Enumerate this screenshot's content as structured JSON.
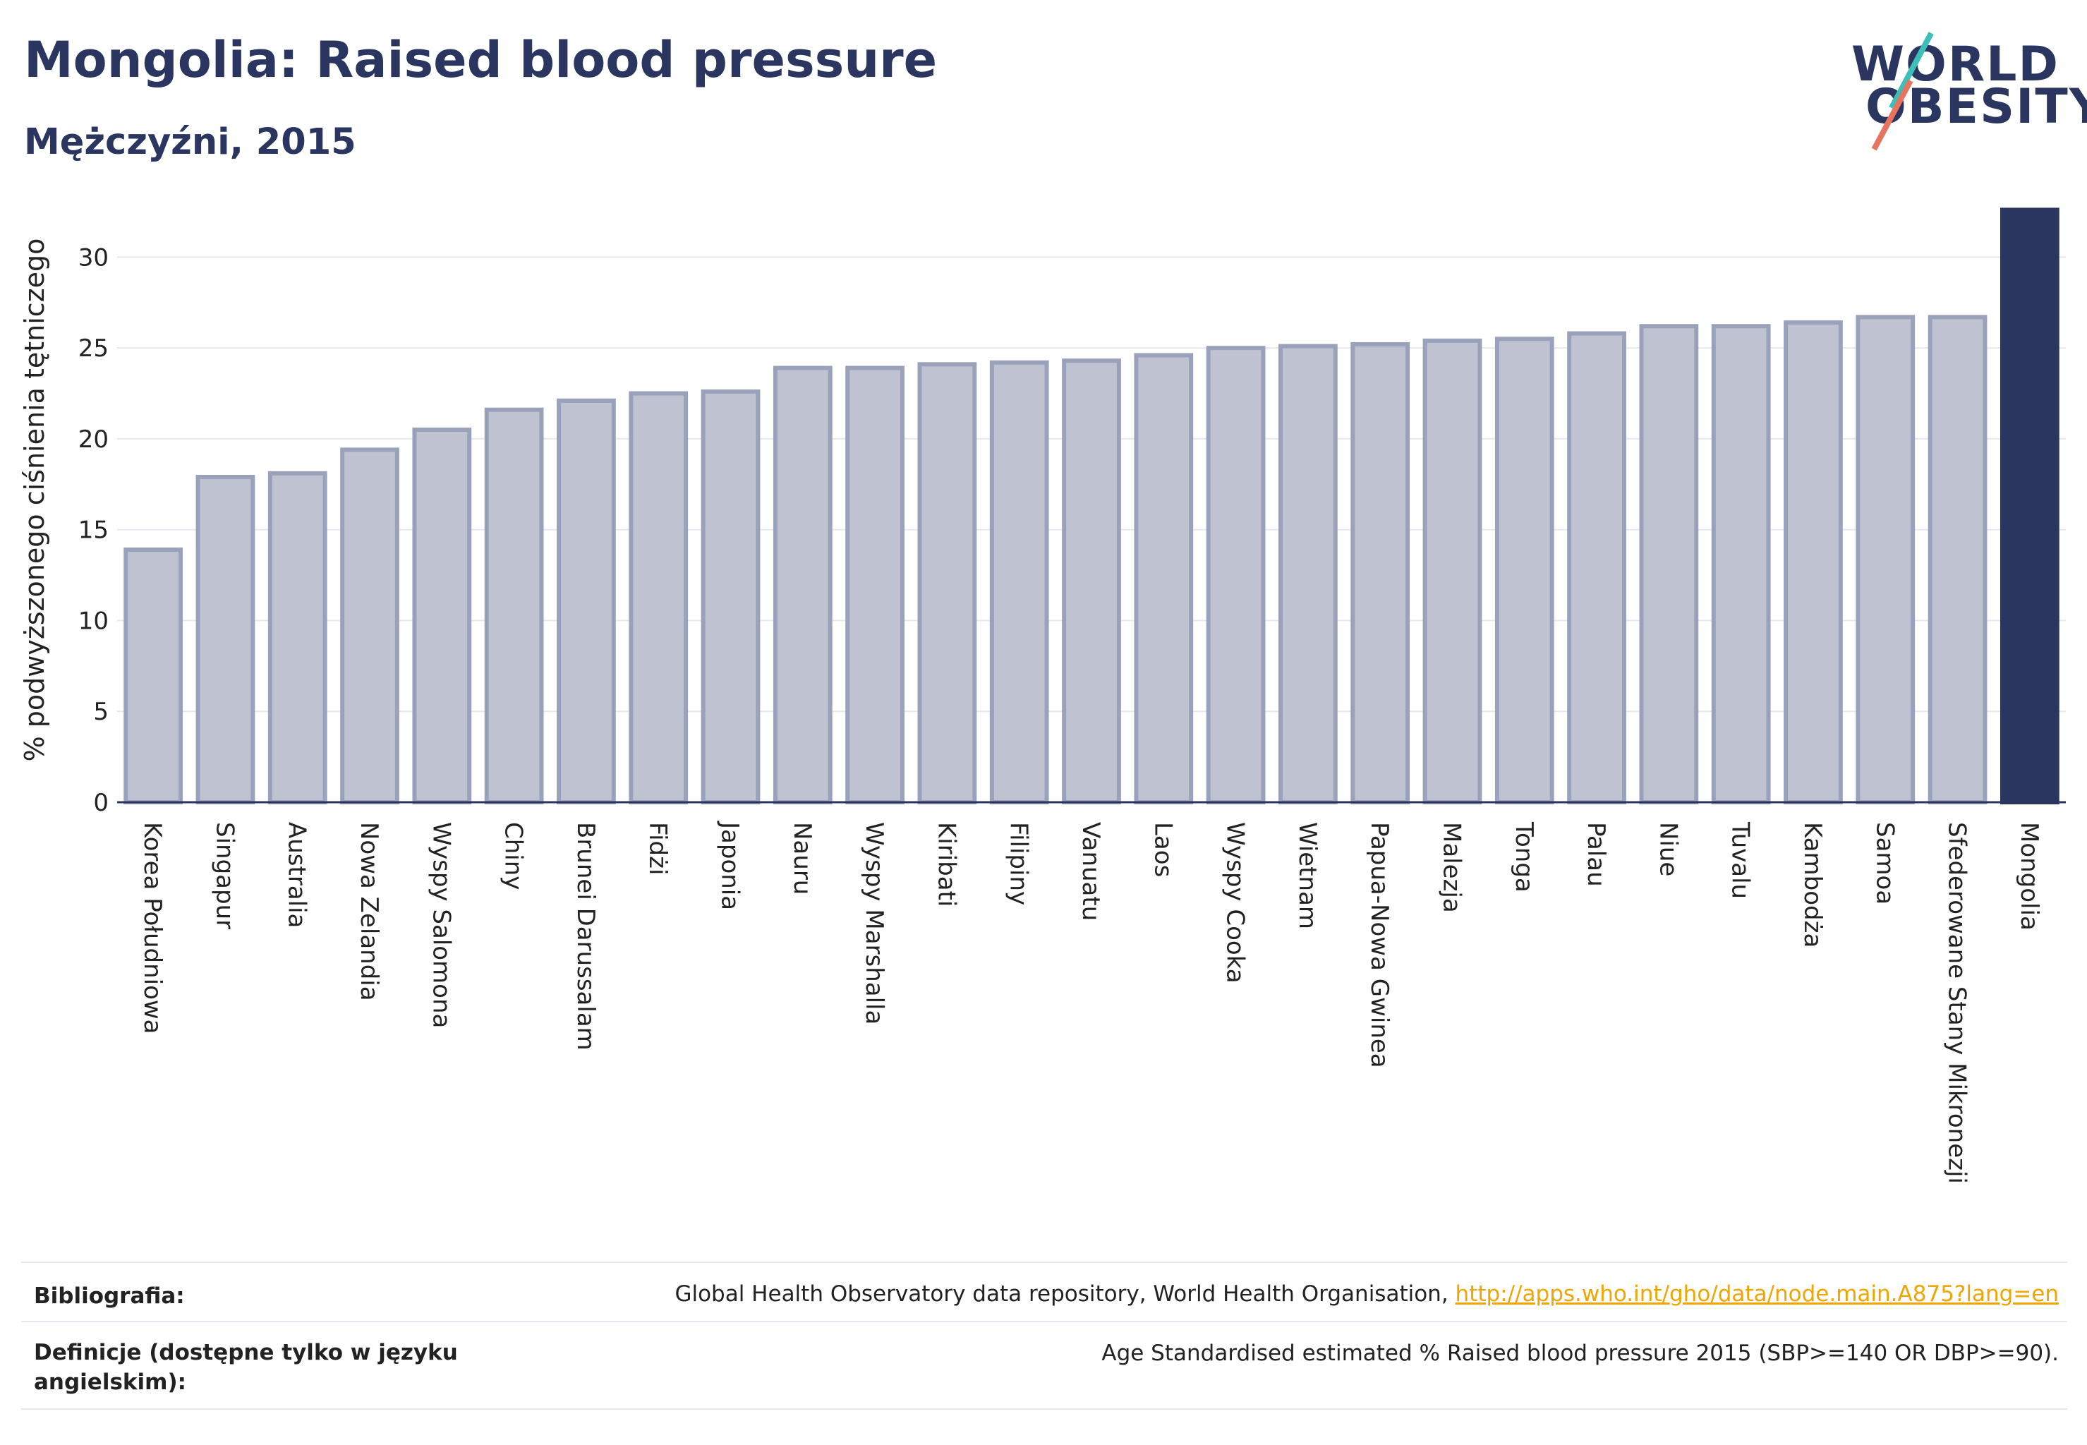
{
  "title": "Mongolia: Raised blood pressure",
  "subtitle": "Mężczyźni, 2015",
  "logo": {
    "line1": "WORLD",
    "line2": "OBESITY"
  },
  "chart_data": {
    "type": "bar",
    "ylabel": "% podwyższonego ciśnienia tętniczego",
    "ylim": [
      0,
      32.5
    ],
    "yticks": [
      0,
      5,
      10,
      15,
      20,
      25,
      30
    ],
    "categories": [
      "Korea Południowa",
      "Singapur",
      "Australia",
      "Nowa Zelandia",
      "Wyspy Salomona",
      "Chiny",
      "Brunei Darussalam",
      "Fidżi",
      "Japonia",
      "Nauru",
      "Wyspy Marshalla",
      "Kiribati",
      "Filipiny",
      "Vanuatu",
      "Laos",
      "Wyspy Cooka",
      "Wietnam",
      "Papua-Nowa Gwinea",
      "Malezja",
      "Tonga",
      "Palau",
      "Niue",
      "Tuvalu",
      "Kambodża",
      "Samoa",
      "Sfederowane Stany Mikronezji",
      "Mongolia"
    ],
    "values": [
      13.9,
      17.9,
      18.1,
      19.4,
      20.5,
      21.6,
      22.1,
      22.5,
      22.6,
      23.9,
      23.9,
      24.1,
      24.2,
      24.3,
      24.6,
      25.0,
      25.1,
      25.2,
      25.4,
      25.5,
      25.8,
      26.2,
      26.2,
      26.4,
      26.7,
      26.7,
      32.6
    ],
    "highlight": "Mongolia",
    "colors": {
      "bar": "#bfc3d1",
      "bar_edge": "#9aa1ba",
      "highlight": "#2a3560",
      "grid": "#e6e8ef",
      "axis": "#2a3560"
    }
  },
  "footer": {
    "bibliography_label": "Bibliografia:",
    "bibliography_text": "Global Health Observatory data repository, World Health Organisation, ",
    "bibliography_link": "http://apps.who.int/gho/data/node.main.A875?lang=en",
    "definitions_label": "Definicje (dostępne tylko w języku angielskim):",
    "definitions_text": "Age Standardised estimated % Raised blood pressure 2015 (SBP>=140 OR DBP>=90)."
  }
}
